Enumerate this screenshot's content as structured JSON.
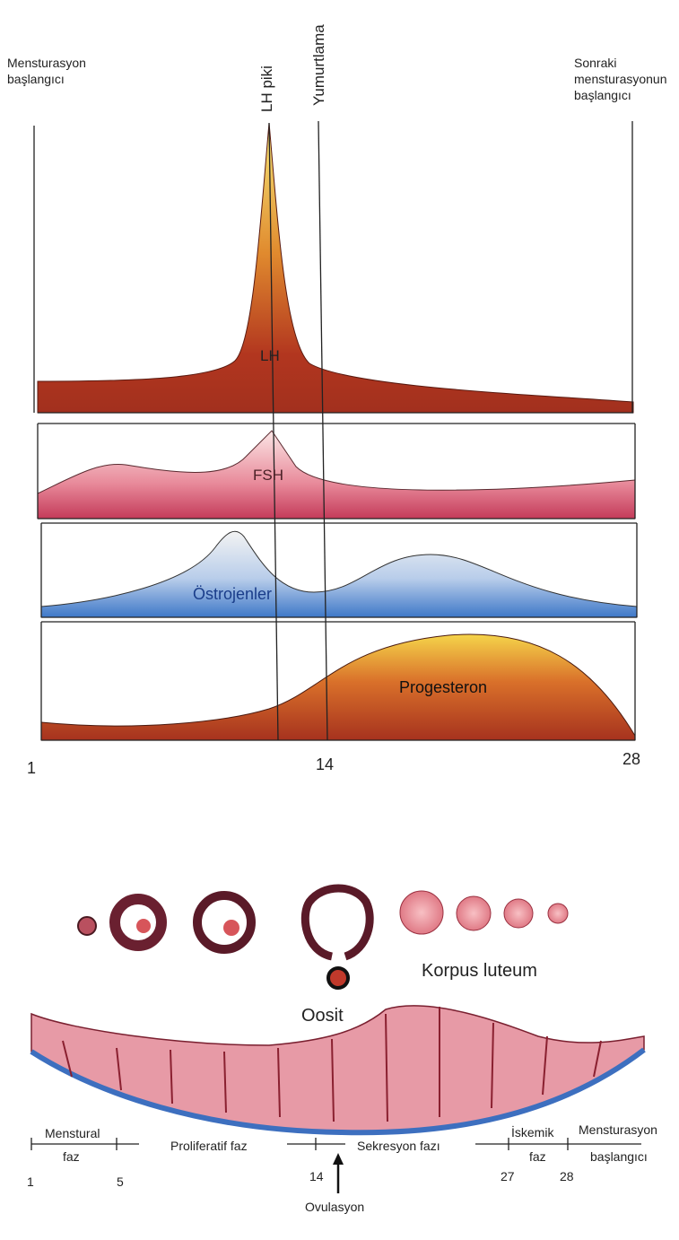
{
  "header": {
    "left": [
      "Mensturasyon",
      "başlangıcı"
    ],
    "lh_peak": "LH piki",
    "ovulation": "Yumurtlama",
    "right": [
      "Sonraki",
      "mensturasyonun",
      "başlangıcı"
    ]
  },
  "hormones": [
    "LH",
    "FSH",
    "Östrojenler",
    "Progesteron"
  ],
  "day_axis": [
    "1",
    "14",
    "28"
  ],
  "ovary": {
    "corpus_luteum": "Korpus luteum",
    "oocyte": "Oosit"
  },
  "phases": {
    "menstrual": [
      "Menstural",
      "faz"
    ],
    "proliferative": "Proliferatif faz",
    "secretory": "Sekresyon fazı",
    "ischemic": [
      "İskemik",
      "faz"
    ],
    "next_start": [
      "Mensturasyon",
      "başlangıcı"
    ],
    "days": [
      "1",
      "5",
      "14",
      "27",
      "28"
    ],
    "ovulation": "Ovulasyon"
  }
}
